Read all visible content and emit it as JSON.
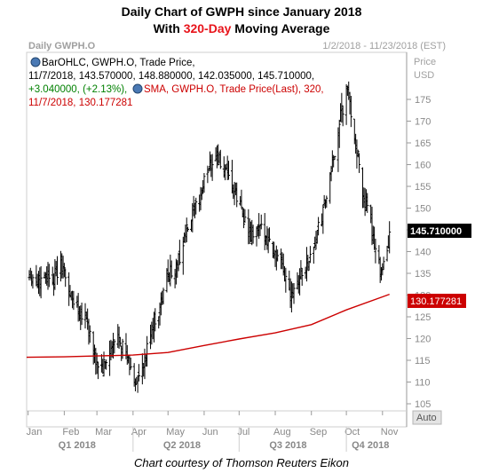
{
  "title_line1": "Daily Chart of GWPH since January 2018",
  "title_line2_prefix": "With ",
  "title_line2_highlight": "320-Day",
  "title_line2_suffix": " Moving Average",
  "courtesy": "Chart courtesy of Thomson Reuters Eikon",
  "chart_data": {
    "type": "line",
    "panel_name": "Daily GWPH.O",
    "date_range": "1/2/2018 - 11/23/2018 (EST)",
    "y_axis_title_line1": "Price",
    "y_axis_title_line2": "USD",
    "legend_bar_line1": "BarOHLC, GWPH.O, Trade Price,",
    "legend_bar_line2": "11/7/2018, 143.570000, 148.880000, 142.035000, 145.710000,",
    "legend_bar_change": "+3.040000, (+2.13%),",
    "legend_sma_line1": "SMA, GWPH.O, Trade Price(Last), 320,",
    "legend_sma_line2": "11/7/2018, 130.177281",
    "last_price_label": "145.710000",
    "sma_label": "130.177281",
    "auto_label": "Auto",
    "ylim": [
      103,
      183
    ],
    "y_ticks": [
      105,
      110,
      115,
      120,
      125,
      130,
      135,
      140,
      145,
      150,
      155,
      160,
      165,
      170,
      175
    ],
    "x_month_labels": [
      "Jan",
      "Feb",
      "Mar",
      "Apr",
      "May",
      "Jun",
      "Jul",
      "Aug",
      "Sep",
      "Oct",
      "Nov"
    ],
    "x_quarter_labels": [
      "Q1 2018",
      "Q2 2018",
      "Q3 2018",
      "Q4 2018"
    ],
    "colors": {
      "bars": "#000000",
      "sma": "#cc0000",
      "change": "#008000",
      "price_label_bg": "#000000",
      "sma_label_bg": "#cc0000"
    },
    "series": [
      {
        "type": "ohlc",
        "close_approx": [
          [
            "2018-01-02",
            135
          ],
          [
            "2018-01-09",
            133
          ],
          [
            "2018-01-16",
            135
          ],
          [
            "2018-01-23",
            134
          ],
          [
            "2018-01-30",
            137
          ],
          [
            "2018-02-06",
            130
          ],
          [
            "2018-02-13",
            127
          ],
          [
            "2018-02-20",
            125
          ],
          [
            "2018-02-27",
            115
          ],
          [
            "2018-03-06",
            113
          ],
          [
            "2018-03-13",
            117
          ],
          [
            "2018-03-20",
            121
          ],
          [
            "2018-03-27",
            115
          ],
          [
            "2018-04-03",
            110
          ],
          [
            "2018-04-10",
            113
          ],
          [
            "2018-04-17",
            123
          ],
          [
            "2018-04-24",
            127
          ],
          [
            "2018-05-01",
            135
          ],
          [
            "2018-05-08",
            136
          ],
          [
            "2018-05-15",
            143
          ],
          [
            "2018-05-22",
            148
          ],
          [
            "2018-05-29",
            153
          ],
          [
            "2018-06-05",
            160
          ],
          [
            "2018-06-12",
            162
          ],
          [
            "2018-06-19",
            158
          ],
          [
            "2018-06-26",
            154
          ],
          [
            "2018-07-03",
            150
          ],
          [
            "2018-07-10",
            143
          ],
          [
            "2018-07-17",
            145
          ],
          [
            "2018-07-24",
            144
          ],
          [
            "2018-07-31",
            140
          ],
          [
            "2018-08-07",
            136
          ],
          [
            "2018-08-14",
            131
          ],
          [
            "2018-08-21",
            134
          ],
          [
            "2018-08-28",
            137
          ],
          [
            "2018-09-04",
            142
          ],
          [
            "2018-09-11",
            149
          ],
          [
            "2018-09-18",
            158
          ],
          [
            "2018-09-25",
            170
          ],
          [
            "2018-10-02",
            177
          ],
          [
            "2018-10-09",
            165
          ],
          [
            "2018-10-16",
            152
          ],
          [
            "2018-10-23",
            145
          ],
          [
            "2018-10-30",
            136
          ],
          [
            "2018-11-06",
            140
          ],
          [
            "2018-11-07",
            145.71
          ]
        ]
      },
      {
        "name": "SMA 320",
        "type": "line",
        "values": [
          [
            "2018-01-02",
            115.7
          ],
          [
            "2018-02-01",
            115.8
          ],
          [
            "2018-03-01",
            116.0
          ],
          [
            "2018-04-01",
            116.2
          ],
          [
            "2018-05-01",
            116.8
          ],
          [
            "2018-06-01",
            118.4
          ],
          [
            "2018-07-01",
            119.9
          ],
          [
            "2018-08-01",
            121.3
          ],
          [
            "2018-09-01",
            123.2
          ],
          [
            "2018-10-01",
            126.6
          ],
          [
            "2018-11-01",
            129.6
          ],
          [
            "2018-11-07",
            130.18
          ]
        ]
      }
    ]
  }
}
